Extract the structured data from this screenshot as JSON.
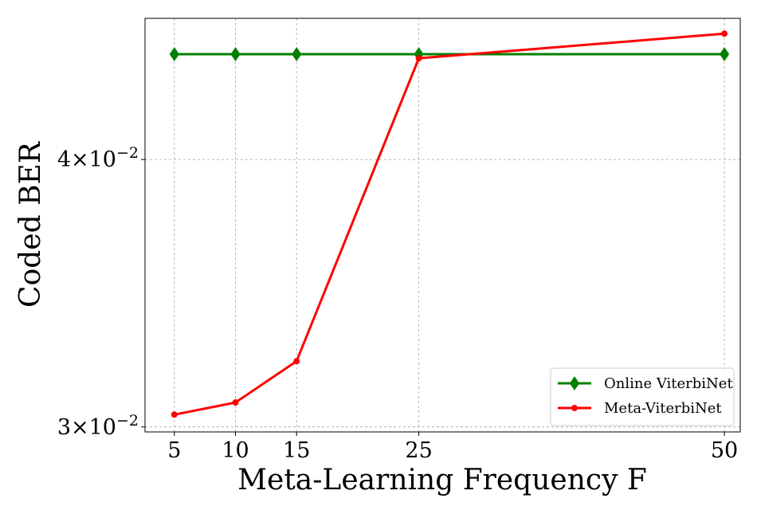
{
  "chart_data": {
    "type": "line",
    "title": "",
    "xlabel": "Meta-Learning Frequency F",
    "ylabel": "Coded BER",
    "y_scale": "log",
    "x_ticks": [
      5,
      10,
      15,
      25,
      50
    ],
    "x_tick_labels": [
      "5",
      "10",
      "15",
      "25",
      "50"
    ],
    "y_ticks": [
      {
        "value": 0.03,
        "mantissa": "3",
        "exponent": "−2"
      },
      {
        "value": 0.04,
        "mantissa": "4",
        "exponent": "−2"
      }
    ],
    "xlim": [
      2.6,
      51.3
    ],
    "ylim": [
      0.02984,
      0.04656
    ],
    "grid": true,
    "legend_position": "lower-right",
    "series": [
      {
        "name": "Online ViterbiNet",
        "color": "#008000",
        "marker": "diamond",
        "x": [
          5,
          10,
          15,
          25,
          50
        ],
        "y": [
          0.0448,
          0.0448,
          0.0448,
          0.0448,
          0.0448
        ]
      },
      {
        "name": "Meta-ViterbiNet",
        "color": "#ff0000",
        "marker": "circle",
        "x": [
          5,
          10,
          15,
          25,
          50
        ],
        "y": [
          0.0304,
          0.0308,
          0.0322,
          0.0446,
          0.0458
        ]
      }
    ]
  }
}
